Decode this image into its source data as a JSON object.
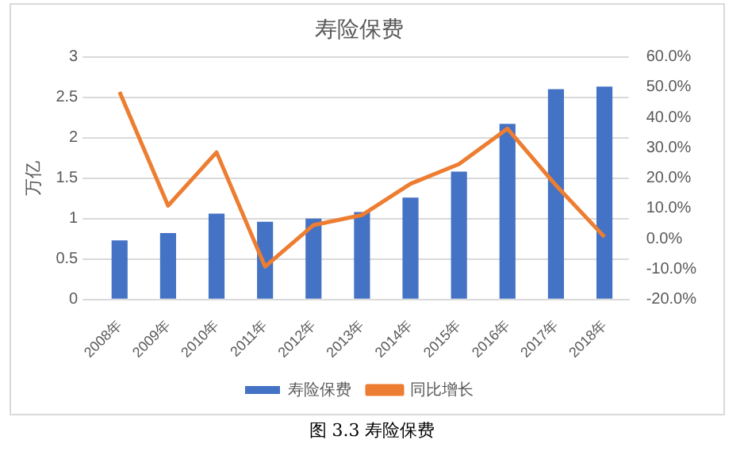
{
  "chart_data": {
    "type": "bar",
    "title": "寿险保费",
    "ylabel": "万亿",
    "categories": [
      "2008年",
      "2009年",
      "2010年",
      "2011年",
      "2012年",
      "2013年",
      "2014年",
      "2015年",
      "2016年",
      "2017年",
      "2018年"
    ],
    "series": [
      {
        "name": "寿险保费",
        "color": "#4472c4",
        "values": [
          0.73,
          0.82,
          1.06,
          0.96,
          1.0,
          1.08,
          1.26,
          1.58,
          2.17,
          2.6,
          2.63
        ]
      },
      {
        "name": "同比增长",
        "type": "line",
        "axis": "y2",
        "color": "#ed7d31",
        "values": [
          48.4,
          10.9,
          28.5,
          -9.2,
          4.5,
          7.8,
          18.1,
          24.6,
          36.3,
          17.6,
          0.6
        ]
      }
    ],
    "ylim": [
      0,
      3
    ],
    "yticks": [
      0,
      0.5,
      1,
      1.5,
      2,
      2.5,
      3
    ],
    "y2lim": [
      -20,
      60
    ],
    "y2ticks": [
      {
        "value": -20,
        "label": "-20.0%"
      },
      {
        "value": -10,
        "label": "-10.0%"
      },
      {
        "value": 0,
        "label": "0.0%"
      },
      {
        "value": 10,
        "label": "10.0%"
      },
      {
        "value": 20,
        "label": "20.0%"
      },
      {
        "value": 30,
        "label": "30.0%"
      },
      {
        "value": 40,
        "label": "40.0%"
      },
      {
        "value": 50,
        "label": "50.0%"
      },
      {
        "value": 60,
        "label": "60.0%"
      }
    ],
    "grid": "y",
    "legend": "bottom",
    "marker": "none",
    "line_style": "solid",
    "annotations": [
      "图 3.3 寿险保费"
    ]
  }
}
